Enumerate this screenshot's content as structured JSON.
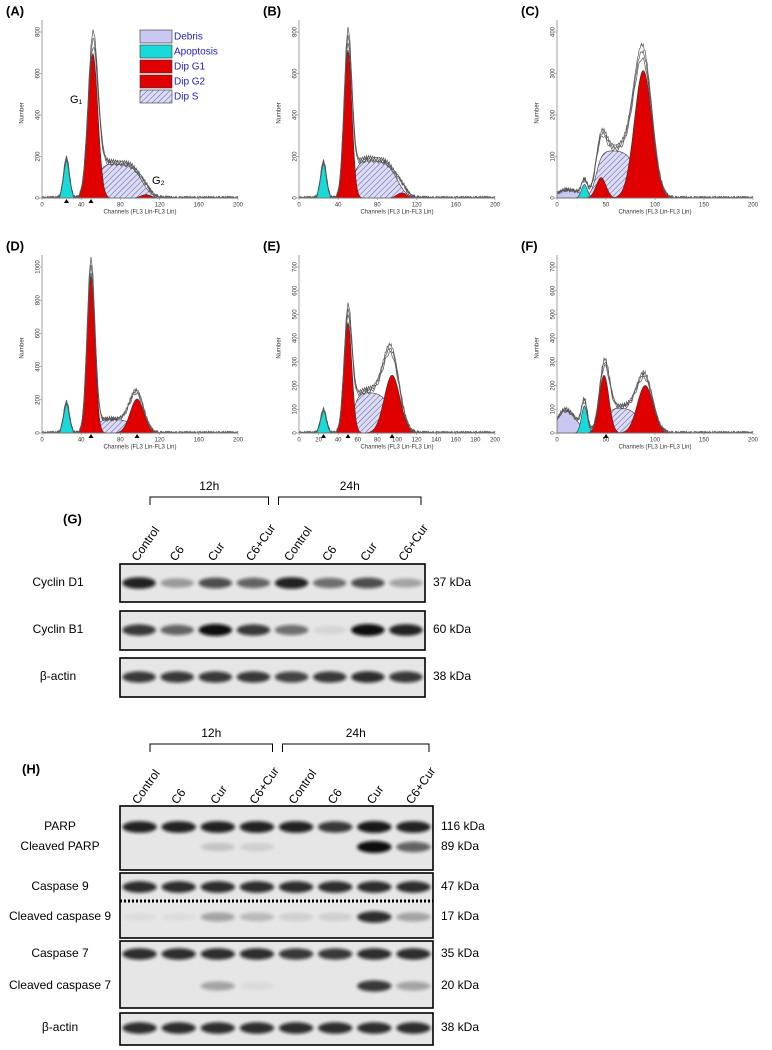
{
  "histograms": [
    {
      "label": "(A)",
      "y_title": "Number",
      "x_title": "Channels (FL3 Lin-FL3 Lin)",
      "xticks": [
        "0",
        "40",
        "80",
        "120",
        "160",
        "200"
      ],
      "yticks": [
        "0",
        "200",
        "400",
        "600",
        "800"
      ]
    },
    {
      "label": "(B)",
      "y_title": "Number",
      "x_title": "Channels (FL3 Lin-FL3 Lin)",
      "xticks": [
        "0",
        "40",
        "80",
        "120",
        "160",
        "200"
      ],
      "yticks": [
        "0",
        "200",
        "400",
        "600",
        "800"
      ]
    },
    {
      "label": "(C)",
      "y_title": "Number",
      "x_title": "Channels (FL3 Lin-FL3 Lin)",
      "xticks": [
        "0",
        "50",
        "100",
        "150",
        "200"
      ],
      "yticks": [
        "0",
        "100",
        "200",
        "300",
        "400"
      ]
    },
    {
      "label": "(D)",
      "y_title": "Number",
      "x_title": "Channels (FL3 Lin-FL3 Lin)",
      "xticks": [
        "0",
        "40",
        "80",
        "120",
        "160",
        "200"
      ],
      "yticks": [
        "0",
        "200",
        "400",
        "600",
        "800",
        "1000"
      ]
    },
    {
      "label": "(E)",
      "y_title": "Number",
      "x_title": "Channels (FL3 Lin-FL3 Lin)",
      "xticks": [
        "0",
        "20",
        "40",
        "60",
        "80",
        "100",
        "120",
        "140",
        "160",
        "180",
        "200"
      ],
      "yticks": [
        "0",
        "100",
        "200",
        "300",
        "400",
        "500",
        "600",
        "700"
      ]
    },
    {
      "label": "(F)",
      "y_title": "Number",
      "x_title": "Channels (FL3 Lin-FL3 Lin)",
      "xticks": [
        "0",
        "50",
        "100",
        "150",
        "200"
      ],
      "yticks": [
        "0",
        "100",
        "200",
        "300",
        "400",
        "500",
        "600",
        "700"
      ]
    }
  ],
  "legend": [
    "Debris",
    "Apoptosis",
    "Dip G1",
    "Dip G2",
    "Dip S"
  ],
  "peak_labels": [
    "G₁",
    "G₂"
  ],
  "blots": [
    {
      "label": "(G)",
      "time_groups": [
        "12h",
        "24h"
      ],
      "lanes": [
        "Control",
        "C6",
        "Cur",
        "C6+Cur",
        "Control",
        "C6",
        "Cur",
        "C6+Cur"
      ],
      "rows": [
        {
          "name": "Cyclin D1",
          "size": "37 kDa"
        },
        {
          "name": "Cyclin B1",
          "size": "60 kDa"
        },
        {
          "name": "β-actin",
          "size": "38 kDa"
        }
      ]
    },
    {
      "label": "(H)",
      "time_groups": [
        "12h",
        "24h"
      ],
      "lanes": [
        "Control",
        "C6",
        "Cur",
        "C6+Cur",
        "Control",
        "C6",
        "Cur",
        "C6+Cur"
      ],
      "rows": [
        {
          "name": "PARP",
          "size": "116 kDa"
        },
        {
          "name": "Cleaved PARP",
          "size": "89 kDa"
        },
        {
          "name": "Caspase 9",
          "size": "47 kDa"
        },
        {
          "name": "Cleaved caspase 9",
          "size": "17 kDa"
        },
        {
          "name": "Caspase 7",
          "size": "35 kDa"
        },
        {
          "name": "Cleaved caspase 7",
          "size": "20 kDa"
        },
        {
          "name": "β-actin",
          "size": "38 kDa"
        }
      ]
    }
  ]
}
